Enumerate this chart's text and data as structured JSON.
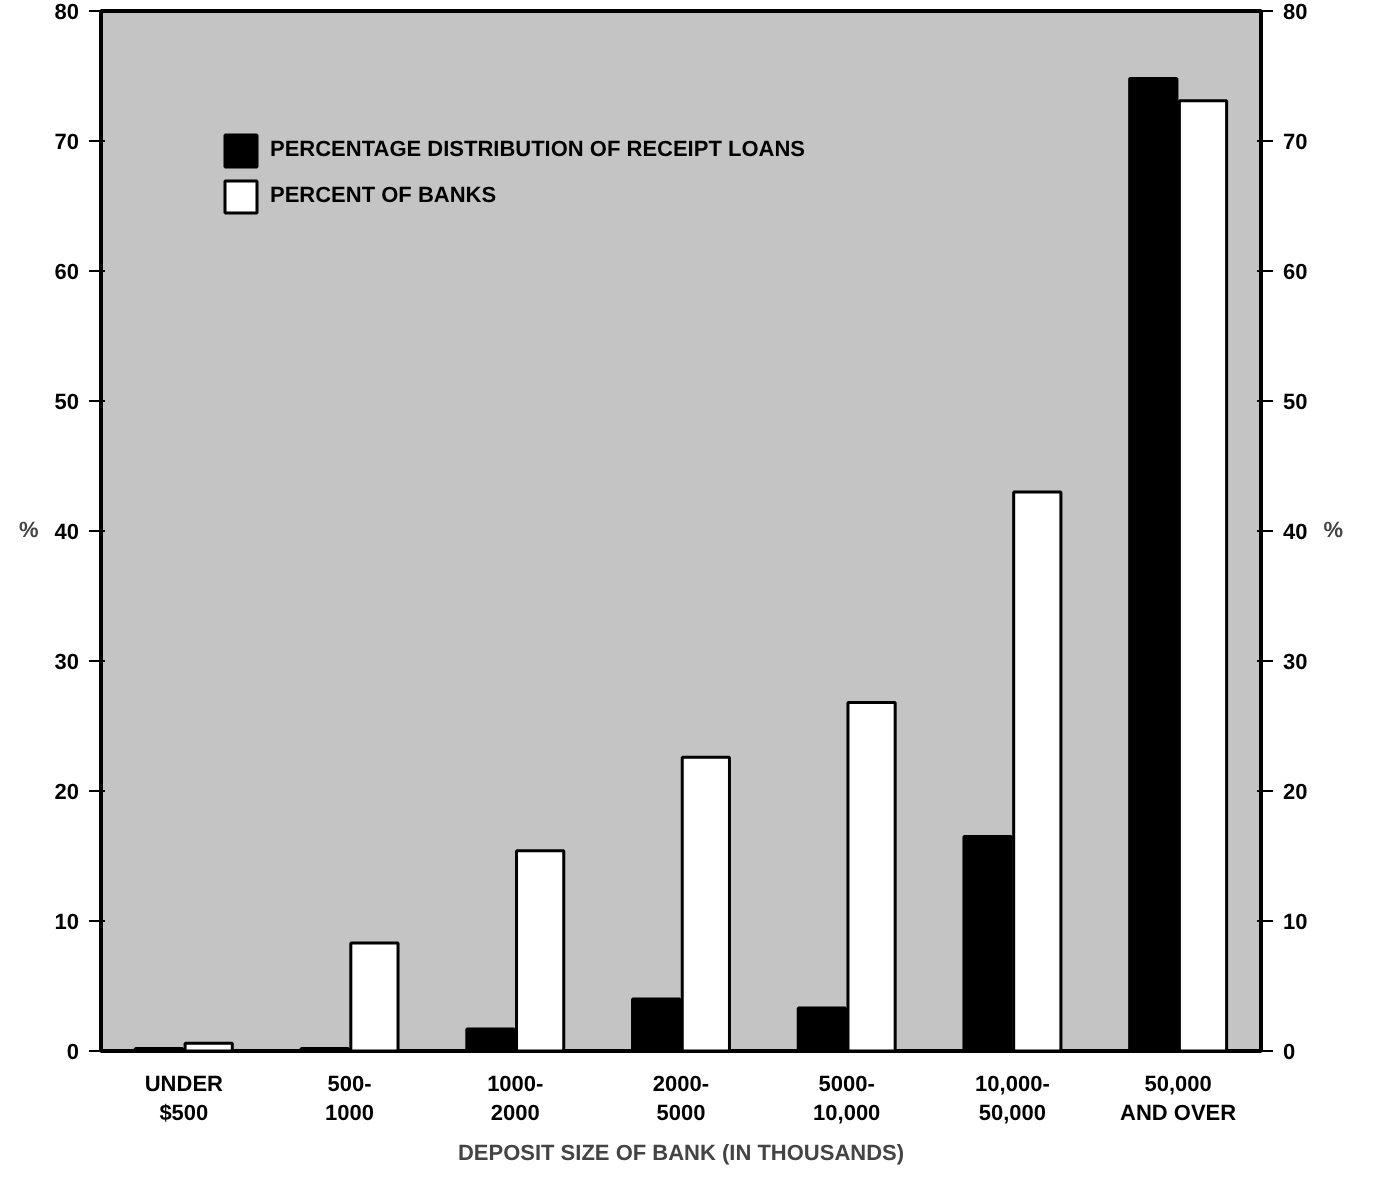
{
  "chart_data": {
    "type": "bar",
    "xlabel": "DEPOSIT SIZE OF BANK (IN THOUSANDS)",
    "ylabel": "%",
    "y2label": "%",
    "categories": [
      "UNDER\n$500",
      "500-\n1000",
      "1000-\n2000",
      "2000-\n5000",
      "5000-\n10,000",
      "10,000-\n50,000",
      "50,000\nAND OVER"
    ],
    "series": [
      {
        "name": "PERCENTAGE DISTRIBUTION OF RECEIPT LOANS",
        "color": "#000000",
        "values": [
          0.2,
          0.2,
          1.7,
          4.0,
          3.3,
          16.5,
          74.8
        ]
      },
      {
        "name": "PERCENT OF BANKS",
        "color": "#ffffff",
        "values": [
          0.6,
          8.3,
          15.4,
          22.6,
          26.8,
          43.0,
          73.1
        ]
      }
    ],
    "ylim": [
      0,
      80
    ],
    "yticks": [
      0,
      10,
      20,
      30,
      40,
      50,
      60,
      70,
      80
    ],
    "y2lim": [
      0,
      80
    ],
    "y2ticks": [
      0,
      10,
      20,
      30,
      40,
      50,
      60,
      70,
      80
    ],
    "grid": false,
    "legend": "top left"
  }
}
